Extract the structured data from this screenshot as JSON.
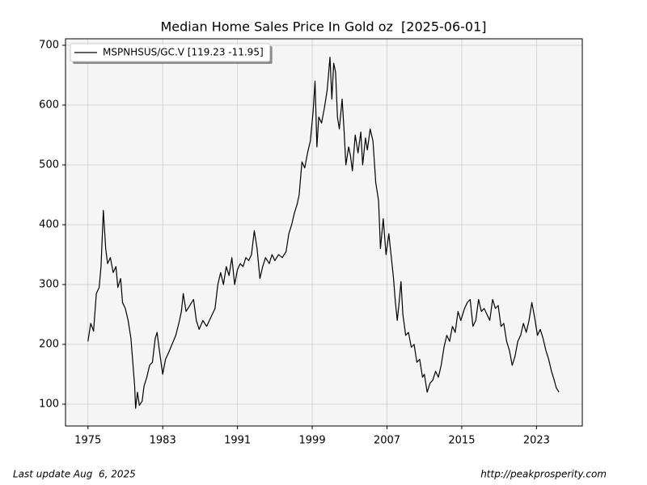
{
  "chart_data": {
    "type": "line",
    "title": "Median Home Sales Price In Gold oz  [2025-06-01]",
    "x": [
      1975.0,
      1975.3,
      1975.6,
      1975.9,
      1976.2,
      1976.4,
      1976.65,
      1976.9,
      1977.1,
      1977.4,
      1977.7,
      1978.0,
      1978.2,
      1978.5,
      1978.7,
      1979.0,
      1979.3,
      1979.6,
      1979.8,
      1980.0,
      1980.1,
      1980.3,
      1980.5,
      1980.8,
      1981.0,
      1981.3,
      1981.6,
      1981.9,
      1982.2,
      1982.4,
      1982.6,
      1983.0,
      1983.3,
      1983.6,
      1984.0,
      1984.4,
      1984.8,
      1985.0,
      1985.2,
      1985.5,
      1985.9,
      1986.3,
      1986.6,
      1986.9,
      1987.3,
      1987.7,
      1988.0,
      1988.3,
      1988.6,
      1988.9,
      1989.2,
      1989.5,
      1989.8,
      1990.1,
      1990.4,
      1990.7,
      1991.0,
      1991.3,
      1991.6,
      1991.9,
      1992.2,
      1992.5,
      1992.8,
      1993.1,
      1993.4,
      1993.7,
      1994.0,
      1994.4,
      1994.7,
      1995.0,
      1995.4,
      1995.8,
      1996.2,
      1996.5,
      1996.8,
      1997.1,
      1997.4,
      1997.6,
      1997.9,
      1998.2,
      1998.5,
      1998.8,
      1999.1,
      1999.3,
      1999.5,
      1999.7,
      2000.0,
      2000.3,
      2000.6,
      2000.9,
      2001.1,
      2001.3,
      2001.5,
      2001.7,
      2001.9,
      2002.2,
      2002.4,
      2002.6,
      2002.9,
      2003.1,
      2003.3,
      2003.6,
      2003.9,
      2004.2,
      2004.4,
      2004.7,
      2004.9,
      2005.2,
      2005.5,
      2005.8,
      2006.1,
      2006.3,
      2006.6,
      2006.9,
      2007.2,
      2007.4,
      2007.7,
      2007.9,
      2008.1,
      2008.3,
      2008.5,
      2008.7,
      2009.0,
      2009.3,
      2009.6,
      2009.9,
      2010.2,
      2010.5,
      2010.8,
      2011.0,
      2011.3,
      2011.6,
      2011.9,
      2012.2,
      2012.5,
      2012.8,
      2013.1,
      2013.4,
      2013.7,
      2014.0,
      2014.3,
      2014.6,
      2014.9,
      2015.3,
      2015.6,
      2015.9,
      2016.2,
      2016.5,
      2016.8,
      2017.1,
      2017.4,
      2017.7,
      2018.0,
      2018.3,
      2018.6,
      2018.9,
      2019.2,
      2019.5,
      2019.8,
      2020.1,
      2020.4,
      2020.7,
      2021.0,
      2021.3,
      2021.6,
      2021.9,
      2022.2,
      2022.5,
      2022.8,
      2023.1,
      2023.4,
      2023.7,
      2024.0,
      2024.3,
      2024.6,
      2024.9,
      2025.1,
      2025.4
    ],
    "series": [
      {
        "name": "MSPNHSUS/GC.V [119.23 -11.95]",
        "color": "#000000",
        "values": [
          205,
          235,
          222,
          285,
          295,
          330,
          424,
          360,
          335,
          345,
          320,
          330,
          295,
          310,
          270,
          260,
          240,
          210,
          170,
          130,
          93,
          120,
          98,
          105,
          130,
          145,
          165,
          170,
          210,
          220,
          195,
          150,
          175,
          185,
          200,
          215,
          240,
          255,
          285,
          255,
          265,
          275,
          240,
          225,
          240,
          230,
          240,
          250,
          260,
          300,
          320,
          300,
          330,
          315,
          345,
          300,
          325,
          335,
          330,
          345,
          340,
          350,
          390,
          360,
          310,
          330,
          345,
          335,
          350,
          340,
          350,
          345,
          355,
          385,
          400,
          420,
          435,
          450,
          505,
          495,
          520,
          540,
          590,
          640,
          530,
          580,
          570,
          595,
          625,
          680,
          610,
          670,
          655,
          580,
          560,
          610,
          560,
          500,
          530,
          515,
          490,
          550,
          520,
          555,
          500,
          545,
          525,
          560,
          540,
          470,
          440,
          360,
          410,
          350,
          385,
          355,
          310,
          270,
          240,
          270,
          305,
          250,
          215,
          220,
          195,
          200,
          170,
          175,
          145,
          150,
          120,
          135,
          140,
          155,
          145,
          165,
          195,
          215,
          205,
          230,
          220,
          255,
          240,
          260,
          270,
          275,
          230,
          240,
          275,
          255,
          260,
          250,
          240,
          275,
          260,
          265,
          230,
          235,
          205,
          190,
          165,
          180,
          205,
          215,
          235,
          220,
          240,
          270,
          245,
          215,
          225,
          210,
          190,
          175,
          155,
          140,
          128,
          120
        ]
      }
    ],
    "xlim": [
      1972.6,
      2027.9
    ],
    "ylim": [
      63.5,
      710.8
    ],
    "xticks": [
      1975,
      1983,
      1991,
      1999,
      2007,
      2015,
      2023
    ],
    "yticks": [
      100,
      200,
      300,
      400,
      500,
      600,
      700
    ],
    "grid": true,
    "legend": "upper left"
  },
  "footer": {
    "left": "Last update Aug  6, 2025",
    "right": "http://peakprosperity.com"
  }
}
